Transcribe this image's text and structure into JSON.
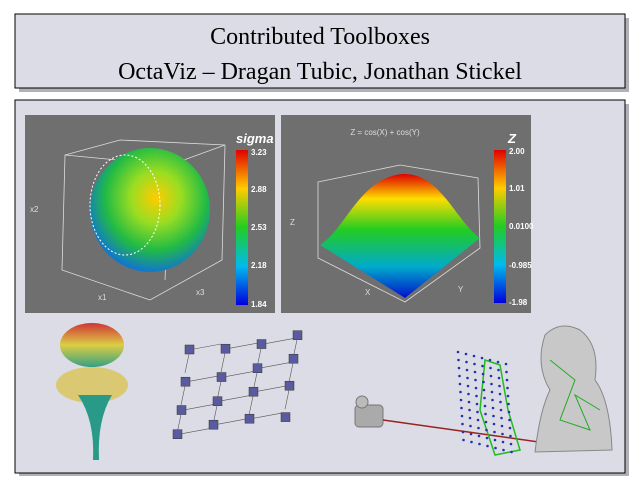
{
  "header": {
    "title": "Contributed Toolboxes",
    "subtitle": "OctaViz – Dragan Tubic, Jonathan Stickel"
  },
  "figures": [
    {
      "colorbar_title": "sigma",
      "colorbar_labels": [
        "3.23",
        "2.88",
        "2.53",
        "2.18",
        "1.84"
      ],
      "axis_labels": [
        "x1",
        "x2",
        "x3"
      ]
    },
    {
      "title": "Z = cos(X) + cos(Y)",
      "colorbar_title": "Z",
      "colorbar_labels": [
        "2.00",
        "1.01",
        "0.0100",
        "-0.985",
        "-1.98"
      ],
      "axis_labels": [
        "X",
        "Y",
        "Z"
      ]
    }
  ]
}
